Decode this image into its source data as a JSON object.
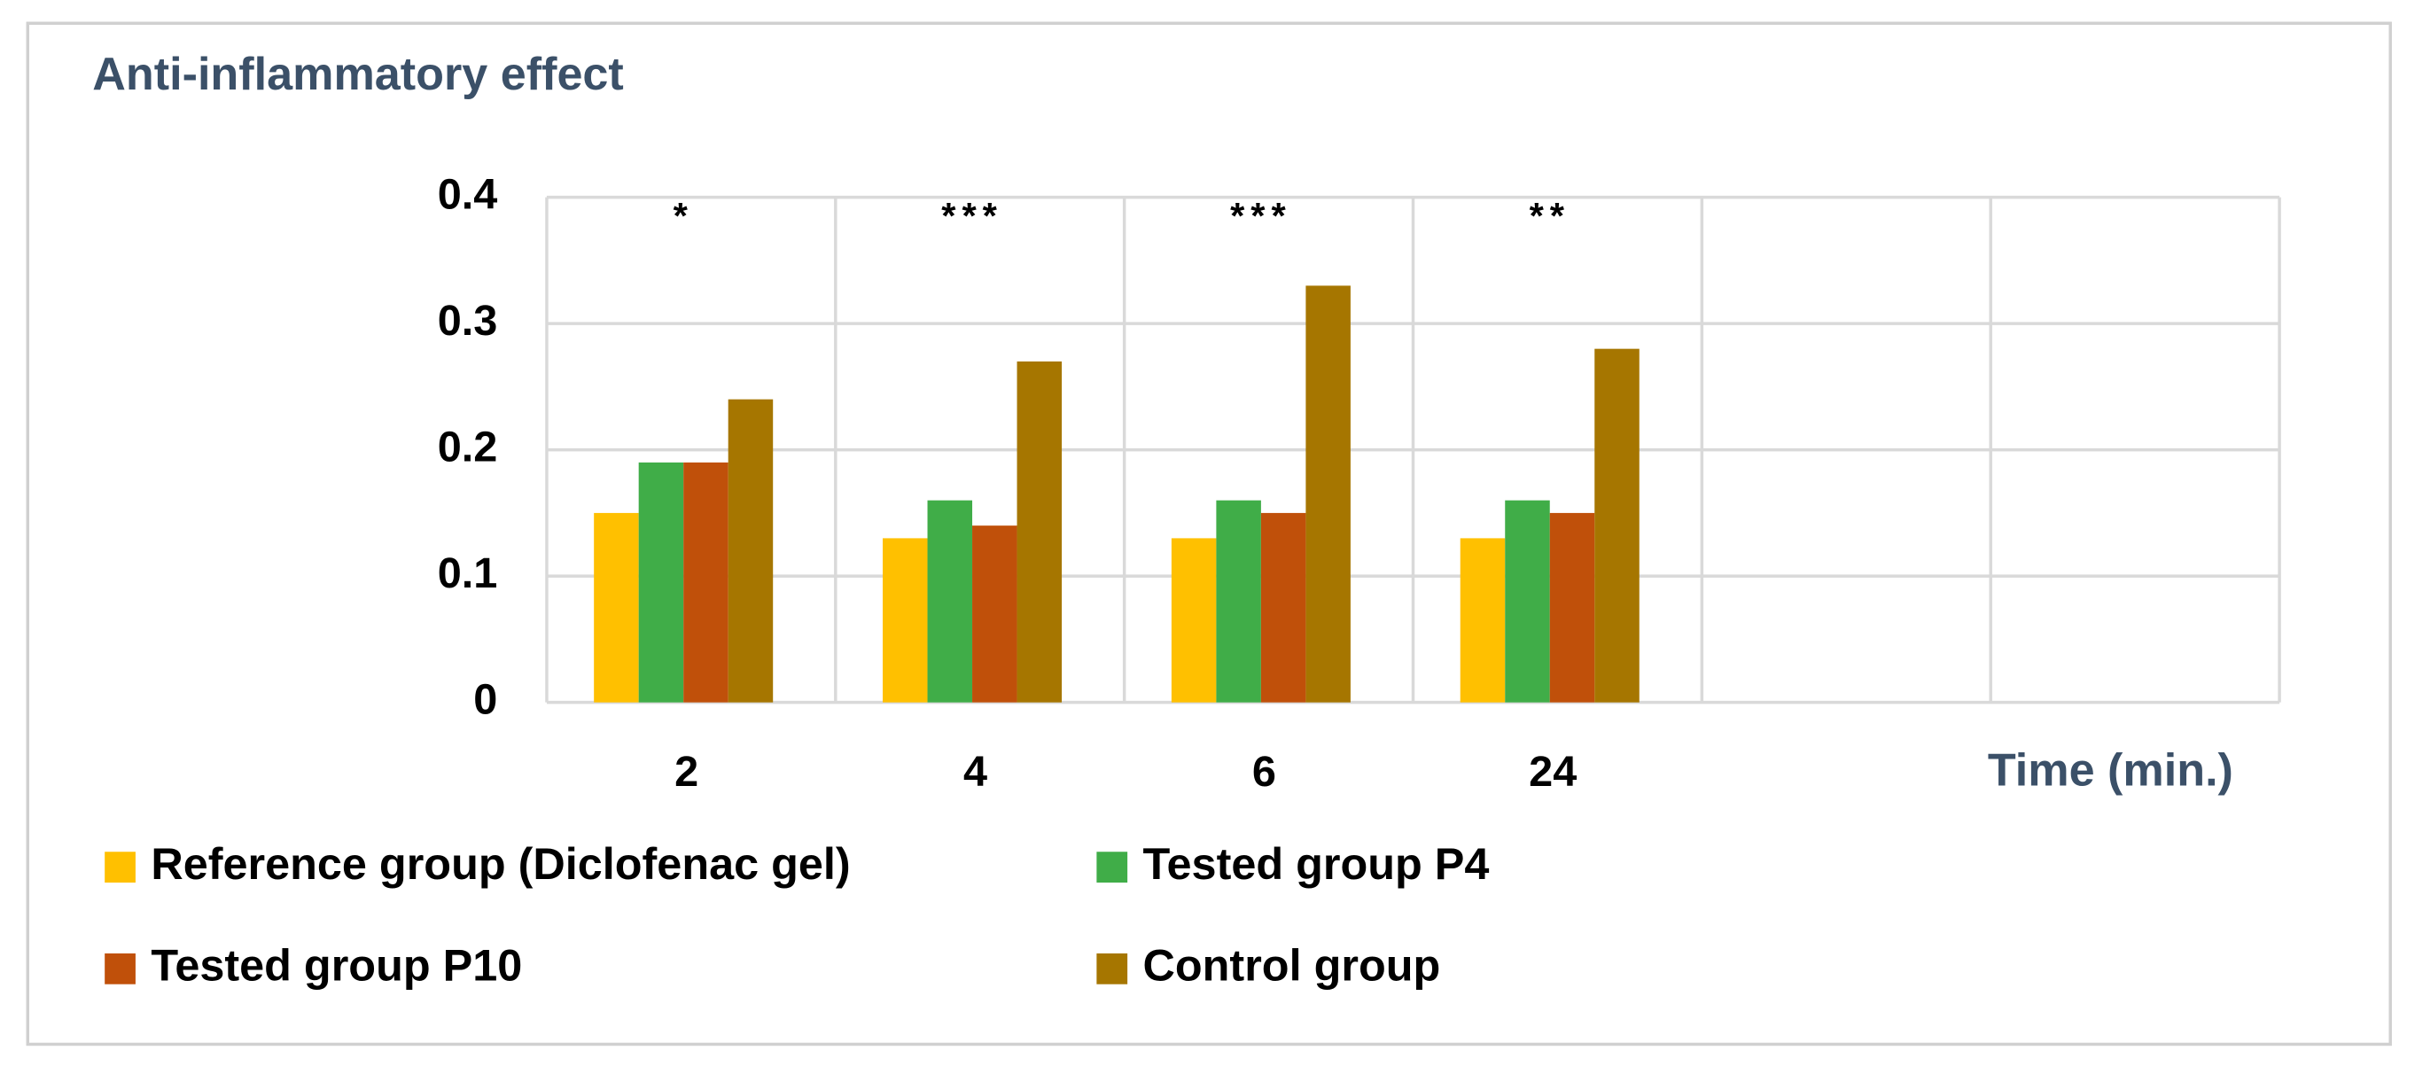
{
  "chart_data": {
    "type": "bar",
    "title": "Anti-inflammatory effect",
    "x_label": "Time (min.)",
    "categories": [
      "2",
      "4",
      "6",
      "24",
      null,
      null
    ],
    "annotations": [
      "*",
      "***",
      "***",
      "**"
    ],
    "series": [
      {
        "name": "Reference group (Diclofenac gel)",
        "color": "#ffc000",
        "values": [
          0.15,
          0.13,
          0.13,
          0.13,
          null,
          null
        ]
      },
      {
        "name": "Tested group P4",
        "color": "#40ad48",
        "values": [
          0.19,
          0.16,
          0.16,
          0.16,
          null,
          null
        ]
      },
      {
        "name": "Tested group P10",
        "color": "#c0500a",
        "values": [
          0.19,
          0.14,
          0.15,
          0.15,
          null,
          null
        ]
      },
      {
        "name": "Control group",
        "color": "#a67600",
        "values": [
          0.24,
          0.27,
          0.33,
          0.28,
          null,
          null
        ]
      }
    ],
    "ylim": [
      0,
      0.4
    ],
    "yticks": [
      0,
      0.1,
      0.2,
      0.3,
      0.4
    ],
    "grid": true
  }
}
